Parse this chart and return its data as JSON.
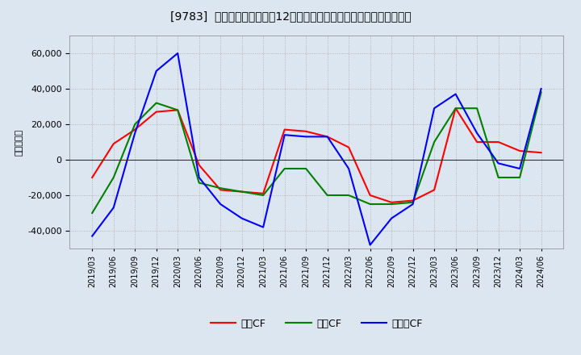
{
  "title": "[9783]  キャッシュフローの12か月移動合計の対前年同期増減額の推移",
  "ylabel": "（百万円）",
  "background_color": "#dce6f0",
  "plot_bg_color": "#dce6f0",
  "grid_color": "#aaaaaa",
  "ylim": [
    -50000,
    70000
  ],
  "yticks": [
    -40000,
    -20000,
    0,
    20000,
    40000,
    60000
  ],
  "dates": [
    "2019/03",
    "2019/06",
    "2019/09",
    "2019/12",
    "2020/03",
    "2020/06",
    "2020/09",
    "2020/12",
    "2021/03",
    "2021/06",
    "2021/09",
    "2021/12",
    "2022/03",
    "2022/06",
    "2022/09",
    "2022/12",
    "2023/03",
    "2023/06",
    "2023/09",
    "2023/12",
    "2024/03",
    "2024/06"
  ],
  "eigyo_cf": [
    -10000,
    9000,
    17000,
    27000,
    28000,
    -3000,
    -17000,
    -18000,
    -19000,
    17000,
    16000,
    13000,
    7000,
    -20000,
    -24000,
    -23000,
    -17000,
    29000,
    10000,
    10000,
    5000,
    4000
  ],
  "toshi_cf": [
    -30000,
    -10000,
    20000,
    32000,
    28000,
    -13000,
    -16000,
    -18000,
    -20000,
    -5000,
    -5000,
    -20000,
    -20000,
    -25000,
    -25000,
    -24000,
    10000,
    29000,
    29000,
    -10000,
    -10000,
    38000
  ],
  "free_cf": [
    -43000,
    -27000,
    15000,
    50000,
    60000,
    -10000,
    -25000,
    -33000,
    -38000,
    14000,
    13000,
    13000,
    -5000,
    -48000,
    -33000,
    -25000,
    29000,
    37000,
    15000,
    -2000,
    -5000,
    40000
  ],
  "color_eigyo": "#ff0000",
  "color_toshi": "#008000",
  "color_free": "#0000ff",
  "label_eigyo": "営業CF",
  "label_toshi": "投資CF",
  "label_free": "フリーCF",
  "line_width": 1.5
}
